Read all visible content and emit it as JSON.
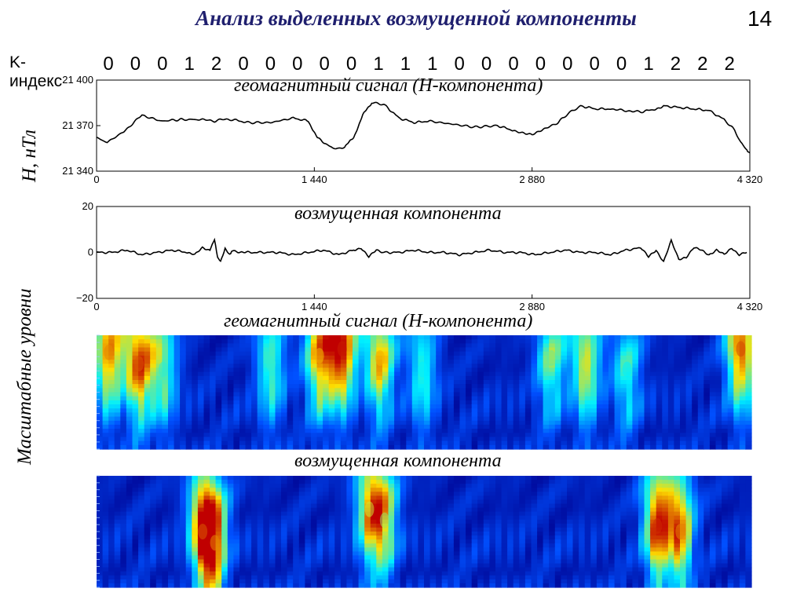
{
  "title": "Анализ выделенных возмущенной компоненты",
  "page_number": "14",
  "kp": {
    "label": "K-индекс",
    "values": [
      "0",
      "0",
      "0",
      "1",
      "2",
      "0",
      "0",
      "0",
      "0",
      "0",
      "1",
      "1",
      "1",
      "0",
      "0",
      "0",
      "0",
      "0",
      "0",
      "0",
      "1",
      "2",
      "2",
      "2"
    ]
  },
  "side_labels": {
    "h_axis": "H, нТл",
    "scales": "Масштабные уровни"
  },
  "chart_data": [
    {
      "type": "line",
      "title": "геомагнитный сигнал (H-компонента)",
      "ylabel": "H, нТл",
      "xlim": [
        0,
        4320
      ],
      "ylim": [
        21340,
        21400
      ],
      "xticks": [
        "0",
        "1 440",
        "2 880",
        "4 320"
      ],
      "yticks": [
        "21 340",
        "21 370",
        "21 400"
      ],
      "series": [
        {
          "x": [
            0,
            70,
            180,
            300,
            420,
            560,
            700,
            780,
            820,
            900,
            1000,
            1150,
            1300,
            1400,
            1460,
            1560,
            1600,
            1640,
            1700,
            1760,
            1820,
            1900,
            2000,
            2100,
            2200,
            2350,
            2500,
            2650,
            2750,
            2880,
            2970,
            3050,
            3120,
            3200,
            3300,
            3400,
            3480,
            3600,
            3700,
            3750,
            3850,
            3950,
            4050,
            4150,
            4220,
            4260,
            4300,
            4320
          ],
          "y": [
            21362,
            21359,
            21366,
            21377,
            21373,
            21374,
            21374,
            21373,
            21374,
            21374,
            21372,
            21372,
            21375,
            21373,
            21362,
            21355,
            21355,
            21356,
            21362,
            21377,
            21385,
            21384,
            21375,
            21372,
            21373,
            21371,
            21369,
            21370,
            21367,
            21364,
            21368,
            21372,
            21378,
            21383,
            21381,
            21381,
            21380,
            21379,
            21381,
            21383,
            21382,
            21381,
            21380,
            21374,
            21367,
            21359,
            21354,
            21352
          ]
        }
      ]
    },
    {
      "type": "line",
      "title": "возмущенная компонента",
      "xlim": [
        0,
        4320
      ],
      "ylim": [
        -20,
        20
      ],
      "xticks": [
        "0",
        "1 440",
        "2 880",
        "4 320"
      ],
      "yticks": [
        "−20",
        "0",
        "20"
      ],
      "series": [
        {
          "x": [
            0,
            100,
            200,
            300,
            400,
            500,
            600,
            650,
            700,
            750,
            780,
            800,
            820,
            850,
            880,
            900,
            950,
            1000,
            1100,
            1200,
            1300,
            1400,
            1500,
            1600,
            1700,
            1750,
            1800,
            1850,
            1900,
            2000,
            2100,
            2200,
            2300,
            2400,
            2500,
            2600,
            2700,
            2800,
            2900,
            3000,
            3100,
            3200,
            3300,
            3400,
            3500,
            3600,
            3650,
            3700,
            3750,
            3800,
            3850,
            3900,
            3950,
            4000,
            4050,
            4100,
            4150,
            4200,
            4250,
            4300
          ],
          "y": [
            0,
            0,
            1,
            -1,
            0,
            1,
            0,
            -1,
            2,
            1,
            6,
            -2,
            -4,
            2,
            -1,
            1,
            0,
            0,
            0,
            0,
            -1,
            0,
            1,
            -1,
            1,
            2,
            -2,
            1,
            0,
            0,
            1,
            0,
            0,
            -1,
            0,
            1,
            0,
            0,
            -1,
            0,
            1,
            0,
            0,
            -1,
            1,
            2,
            -2,
            1,
            -4,
            5,
            -3,
            -2,
            2,
            1,
            -1,
            1,
            -1,
            2,
            -1,
            0
          ]
        }
      ]
    },
    {
      "type": "heatmap",
      "title": "геомагнитный сигнал (H-компонента)",
      "ylabel": "Масштабные уровни",
      "xlim": [
        0,
        4320
      ],
      "levels": 32,
      "peaks": [
        {
          "x": 80,
          "y": 0.15,
          "v": 0.85
        },
        {
          "x": 280,
          "y": 0.25,
          "v": 0.9
        },
        {
          "x": 440,
          "y": 0.3,
          "v": 0.55
        },
        {
          "x": 1150,
          "y": 0.25,
          "v": 0.55
        },
        {
          "x": 1470,
          "y": 0.18,
          "v": 0.8
        },
        {
          "x": 1620,
          "y": 0.12,
          "v": 0.97
        },
        {
          "x": 1870,
          "y": 0.2,
          "v": 0.8
        },
        {
          "x": 2150,
          "y": 0.3,
          "v": 0.5
        },
        {
          "x": 3000,
          "y": 0.2,
          "v": 0.6
        },
        {
          "x": 3230,
          "y": 0.25,
          "v": 0.7
        },
        {
          "x": 3500,
          "y": 0.3,
          "v": 0.5
        },
        {
          "x": 4250,
          "y": 0.12,
          "v": 0.92
        }
      ]
    },
    {
      "type": "heatmap",
      "title": "возмущенная компонента",
      "xlim": [
        0,
        4320
      ],
      "levels": 32,
      "peaks": [
        {
          "x": 700,
          "y": 0.5,
          "v": 0.9
        },
        {
          "x": 780,
          "y": 0.6,
          "v": 0.85
        },
        {
          "x": 1800,
          "y": 0.3,
          "v": 0.7
        },
        {
          "x": 1900,
          "y": 0.4,
          "v": 0.65
        },
        {
          "x": 3700,
          "y": 0.45,
          "v": 0.95
        },
        {
          "x": 3850,
          "y": 0.5,
          "v": 0.85
        }
      ]
    }
  ]
}
